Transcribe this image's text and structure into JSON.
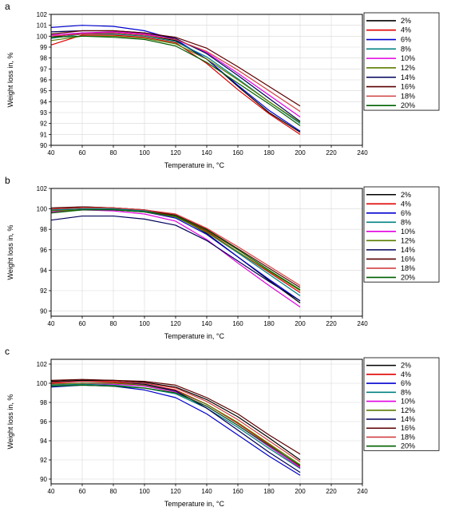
{
  "chart_data": [
    {
      "type": "line",
      "panel_label": "a",
      "xlabel": "Temperature in, °C",
      "ylabel": "Weight loss in, %",
      "xlim": [
        40,
        240
      ],
      "ylim": [
        90,
        102
      ],
      "xticks": [
        40,
        60,
        80,
        100,
        120,
        140,
        160,
        180,
        200,
        220,
        240
      ],
      "yticks": [
        90,
        91,
        92,
        93,
        94,
        95,
        96,
        97,
        98,
        99,
        100,
        101,
        102
      ],
      "grid": true,
      "legend": "top-right",
      "x": [
        40,
        60,
        80,
        100,
        120,
        140,
        160,
        180,
        200
      ],
      "series": [
        {
          "name": "2%",
          "color": "#000000",
          "values": [
            99.9,
            100.3,
            100.3,
            100.1,
            99.6,
            97.9,
            95.4,
            93.0,
            91.2
          ]
        },
        {
          "name": "4%",
          "color": "#e00000",
          "values": [
            99.2,
            100.1,
            100.1,
            99.9,
            99.4,
            97.5,
            95.1,
            92.9,
            91.0
          ]
        },
        {
          "name": "6%",
          "color": "#0000d0",
          "values": [
            100.8,
            101.0,
            100.9,
            100.5,
            99.7,
            97.9,
            95.5,
            93.2,
            91.3
          ]
        },
        {
          "name": "8%",
          "color": "#008080",
          "values": [
            99.8,
            100.2,
            100.2,
            100.0,
            99.5,
            98.1,
            96.1,
            94.0,
            92.0
          ]
        },
        {
          "name": "10%",
          "color": "#e000e0",
          "values": [
            100.1,
            100.3,
            100.4,
            100.2,
            99.7,
            98.5,
            96.6,
            94.6,
            92.6
          ]
        },
        {
          "name": "12%",
          "color": "#5a7a00",
          "values": [
            99.6,
            100.0,
            100.0,
            99.8,
            99.3,
            97.9,
            96.0,
            94.0,
            92.1
          ]
        },
        {
          "name": "14%",
          "color": "#00005a",
          "values": [
            100.4,
            100.5,
            100.5,
            100.3,
            99.8,
            98.4,
            96.4,
            94.3,
            92.2
          ]
        },
        {
          "name": "16%",
          "color": "#5a0000",
          "values": [
            100.2,
            100.5,
            100.5,
            100.3,
            99.9,
            98.9,
            97.2,
            95.4,
            93.6
          ]
        },
        {
          "name": "18%",
          "color": "#d04040",
          "values": [
            100.0,
            100.2,
            100.3,
            100.1,
            99.7,
            98.6,
            96.9,
            95.0,
            93.1
          ]
        },
        {
          "name": "20%",
          "color": "#006000",
          "values": [
            99.9,
            100.0,
            99.9,
            99.7,
            99.1,
            97.6,
            95.7,
            93.8,
            91.8
          ]
        }
      ]
    },
    {
      "type": "line",
      "panel_label": "b",
      "xlabel": "Temperature in, °C",
      "ylabel": "Weight loss in, %",
      "xlim": [
        40,
        240
      ],
      "ylim": [
        89.5,
        102
      ],
      "xticks": [
        40,
        60,
        80,
        100,
        120,
        140,
        160,
        180,
        200,
        220,
        240
      ],
      "yticks": [
        90,
        92,
        94,
        96,
        98,
        100,
        102
      ],
      "grid": true,
      "legend": "top-right",
      "x": [
        40,
        60,
        80,
        100,
        120,
        140,
        160,
        180,
        200
      ],
      "series": [
        {
          "name": "2%",
          "color": "#000000",
          "values": [
            100.0,
            100.2,
            100.1,
            99.9,
            99.3,
            97.6,
            95.3,
            93.0,
            90.8
          ]
        },
        {
          "name": "4%",
          "color": "#e00000",
          "values": [
            99.9,
            100.0,
            100.0,
            99.8,
            99.3,
            97.8,
            95.8,
            93.8,
            91.8
          ]
        },
        {
          "name": "6%",
          "color": "#0000d0",
          "values": [
            99.8,
            100.0,
            99.9,
            99.7,
            99.1,
            97.5,
            95.3,
            93.1,
            91.0
          ]
        },
        {
          "name": "8%",
          "color": "#008080",
          "values": [
            99.9,
            100.0,
            100.0,
            99.8,
            99.2,
            97.7,
            95.7,
            93.6,
            91.5
          ]
        },
        {
          "name": "10%",
          "color": "#e000e0",
          "values": [
            99.7,
            99.9,
            99.8,
            99.5,
            98.8,
            97.0,
            94.7,
            92.5,
            90.4
          ]
        },
        {
          "name": "12%",
          "color": "#5a7a00",
          "values": [
            99.8,
            99.9,
            99.9,
            99.7,
            99.2,
            97.7,
            95.8,
            93.9,
            92.0
          ]
        },
        {
          "name": "14%",
          "color": "#00005a",
          "values": [
            98.9,
            99.3,
            99.3,
            99.0,
            98.4,
            96.9,
            94.9,
            92.9,
            91.0
          ]
        },
        {
          "name": "16%",
          "color": "#5a0000",
          "values": [
            100.1,
            100.2,
            100.1,
            99.9,
            99.4,
            98.0,
            96.1,
            94.2,
            92.3
          ]
        },
        {
          "name": "18%",
          "color": "#d04040",
          "values": [
            100.0,
            100.1,
            100.1,
            99.9,
            99.5,
            98.1,
            96.3,
            94.4,
            92.5
          ]
        },
        {
          "name": "20%",
          "color": "#006000",
          "values": [
            99.6,
            99.9,
            99.9,
            99.7,
            99.3,
            97.9,
            96.0,
            94.0,
            92.1
          ]
        }
      ]
    },
    {
      "type": "line",
      "panel_label": "c",
      "xlabel": "Temperature in, °C",
      "ylabel": "Weight loss in, %",
      "xlim": [
        40,
        240
      ],
      "ylim": [
        89.5,
        102.5
      ],
      "xticks": [
        40,
        60,
        80,
        100,
        120,
        140,
        160,
        180,
        200,
        220,
        240
      ],
      "yticks": [
        90,
        92,
        94,
        96,
        98,
        100,
        102
      ],
      "grid": true,
      "legend": "top-right",
      "x": [
        40,
        60,
        80,
        100,
        120,
        140,
        160,
        180,
        200
      ],
      "series": [
        {
          "name": "2%",
          "color": "#000000",
          "values": [
            100.2,
            100.3,
            100.3,
            100.1,
            99.6,
            98.3,
            96.5,
            94.3,
            92.0
          ]
        },
        {
          "name": "4%",
          "color": "#e00000",
          "values": [
            100.0,
            100.2,
            100.1,
            99.9,
            99.3,
            97.8,
            95.8,
            93.6,
            91.3
          ]
        },
        {
          "name": "6%",
          "color": "#0000d0",
          "values": [
            99.6,
            99.8,
            99.7,
            99.3,
            98.5,
            96.8,
            94.6,
            92.4,
            90.4
          ]
        },
        {
          "name": "8%",
          "color": "#008080",
          "values": [
            99.8,
            99.9,
            99.8,
            99.5,
            98.9,
            97.4,
            95.4,
            93.2,
            91.1
          ]
        },
        {
          "name": "10%",
          "color": "#e000e0",
          "values": [
            99.9,
            100.0,
            99.9,
            99.7,
            99.1,
            97.6,
            95.6,
            93.4,
            91.2
          ]
        },
        {
          "name": "12%",
          "color": "#5a7a00",
          "values": [
            99.9,
            100.0,
            100.0,
            99.8,
            99.2,
            97.8,
            95.9,
            93.7,
            91.5
          ]
        },
        {
          "name": "14%",
          "color": "#00005a",
          "values": [
            100.1,
            100.2,
            100.2,
            99.9,
            99.2,
            97.4,
            95.1,
            92.8,
            90.7
          ]
        },
        {
          "name": "16%",
          "color": "#5a0000",
          "values": [
            100.3,
            100.4,
            100.3,
            100.2,
            99.8,
            98.5,
            96.8,
            94.6,
            92.6
          ]
        },
        {
          "name": "18%",
          "color": "#d04040",
          "values": [
            100.1,
            100.2,
            100.2,
            100.0,
            99.5,
            98.1,
            96.2,
            94.0,
            91.8
          ]
        },
        {
          "name": "20%",
          "color": "#006000",
          "values": [
            99.7,
            99.8,
            99.7,
            99.5,
            99.0,
            97.6,
            95.6,
            93.5,
            91.4
          ]
        }
      ]
    }
  ]
}
